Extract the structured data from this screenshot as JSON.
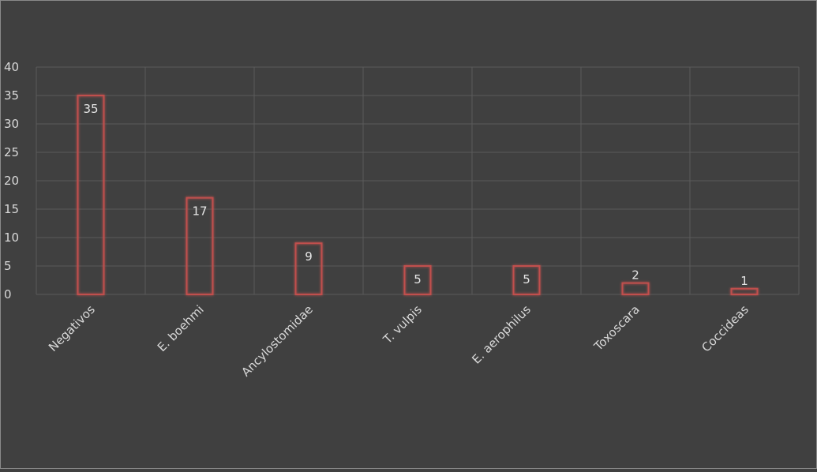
{
  "chart_data": {
    "type": "bar",
    "title": "",
    "xlabel": "",
    "ylabel": "",
    "categories": [
      "Negativos",
      "E. boehmi",
      "Ancylostomidae",
      "T. vulpis",
      "E. aerophilus",
      "Toxoscara",
      "Coccideas"
    ],
    "values": [
      35,
      17,
      9,
      5,
      5,
      2,
      1
    ],
    "ylim": [
      0,
      40
    ],
    "yticks": [
      0,
      5,
      10,
      15,
      20,
      25,
      30,
      35,
      40
    ],
    "grid": true,
    "legend": "none",
    "colors": {
      "background": "#404040",
      "grid": "#5a5a5a",
      "bar_stroke": "#c0504d",
      "text": "#d9d9d9"
    }
  }
}
